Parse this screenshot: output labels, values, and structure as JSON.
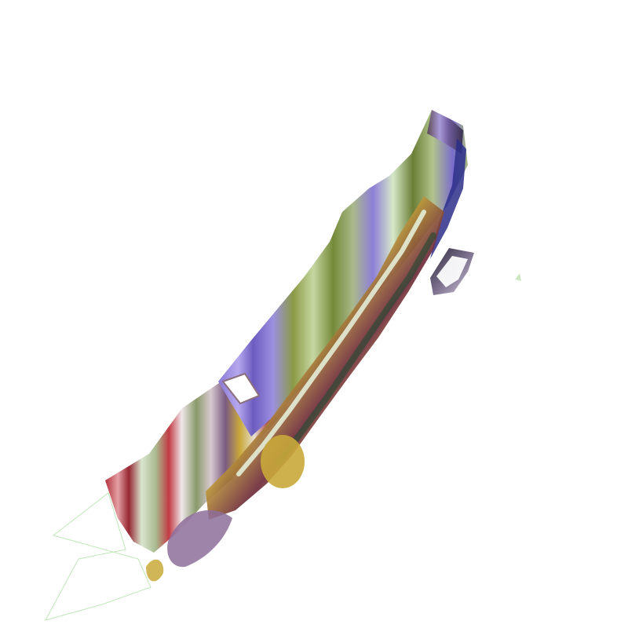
{
  "scene": {
    "background_color": "#ffffff",
    "palette": {
      "violet": "#8a78d6",
      "indigo": "#4b3fa8",
      "olive": "#8a9a45",
      "sage": "#aab98a",
      "pale_green": "#d6e8c8",
      "crimson": "#b4303c",
      "mustard": "#c9a93a",
      "forest": "#3d5a3a",
      "slate": "#6f6a7c",
      "outline_green": "#b8e6b0"
    },
    "objects": [
      {
        "kind": "streaked-extruded-shape",
        "texture": "smeared-vertical-color-bands"
      },
      {
        "kind": "small-floating-block",
        "texture": "dark-slate-shaded"
      },
      {
        "kind": "faint-outline-polygon",
        "texture": "thin-green-stroke"
      },
      {
        "kind": "tiny-speck",
        "texture": "pale-green"
      }
    ]
  }
}
